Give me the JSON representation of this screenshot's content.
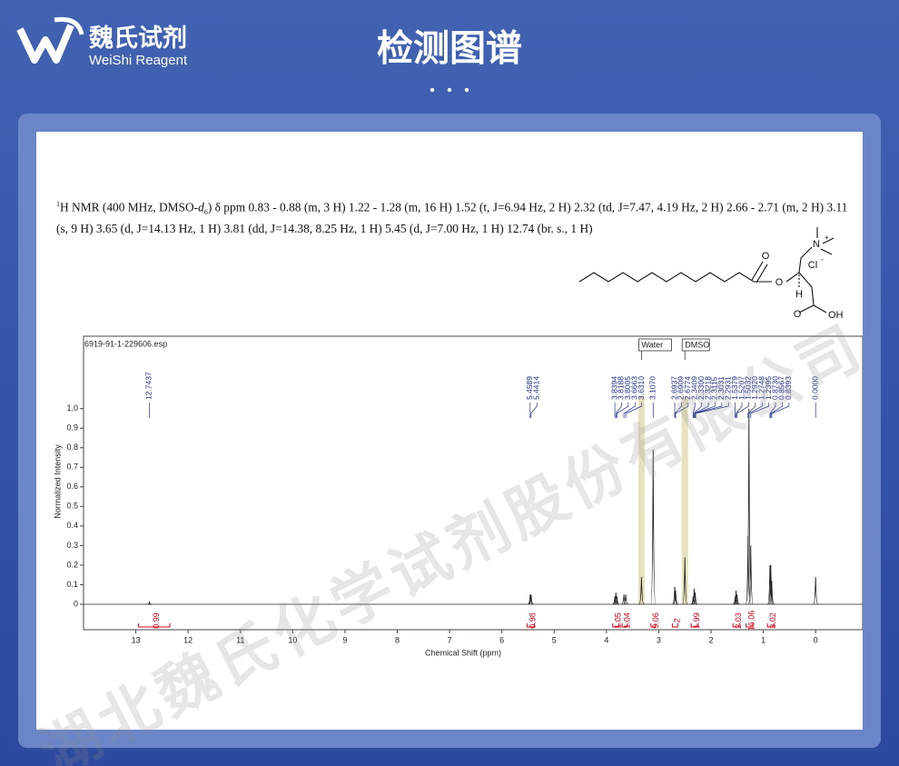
{
  "header": {
    "logo_cn": "魏氏试剂",
    "logo_en": "WeiShi Reagent",
    "title": "检测图谱"
  },
  "watermark": "湖北魏氏化学试剂股份有限公司",
  "nmr_description": {
    "nucleus_mass": "1",
    "prefix": "H NMR (400 MHz, DMSO-",
    "solvent_italic": "d",
    "solvent_sub": "6",
    "text": ") δ ppm 0.83 - 0.88 (m, 3 H) 1.22 - 1.28 (m, 16 H) 1.52 (t, J=6.94 Hz, 2 H) 2.32 (td, J=7.47, 4.19 Hz, 2 H) 2.66 - 2.71 (m, 2 H) 3.11 (s, 9 H) 3.65 (d, J=14.13 Hz, 1 H) 3.81 (dd, J=14.38, 8.25 Hz, 1 H) 5.45 (d, J=7.00 Hz, 1 H) 12.74 (br. s., 1 H)"
  },
  "structure": {
    "carbonyl_o": "O",
    "ester_o": "O",
    "nitrogen": "N",
    "nitrogen_charge": "+",
    "chloride": "Cl",
    "chloride_charge": "-",
    "stereo_h": "H",
    "acid_o": "O",
    "acid_oh": "OH"
  },
  "chart_data": {
    "type": "nmr",
    "file_label": "6919-91-1-229606.esp",
    "x_label": "Chemical Shift (ppm)",
    "y_label": "Normalized Intensity",
    "xlim": [
      14,
      -0.9
    ],
    "ylim": [
      -0.13,
      1.37
    ],
    "xticks": [
      13,
      12,
      11,
      10,
      9,
      8,
      7,
      6,
      5,
      4,
      3,
      2,
      1,
      0
    ],
    "yticks": [
      0,
      0.1,
      0.2,
      0.3,
      0.4,
      0.5,
      0.6,
      0.7,
      0.8,
      0.9,
      {
        "value": 1,
        "label": "1.0"
      }
    ],
    "peak_color": "#222222",
    "integral_color": "#d0021b",
    "label_color": "#1d2f8c",
    "peaks": {
      "x": [
        12.74,
        5.459,
        5.441,
        3.839,
        3.819,
        3.8,
        3.666,
        3.631,
        3.33,
        3.107,
        2.694,
        2.677,
        2.5,
        2.341,
        2.322,
        2.303,
        1.538,
        1.521,
        1.503,
        1.292,
        1.275,
        1.24,
        0.873,
        0.857,
        0.839,
        0
      ],
      "values": [
        0.01,
        0.05,
        0.05,
        0.04,
        0.06,
        0.04,
        0.05,
        0.05,
        0.14,
        0.79,
        0.09,
        0.07,
        0.24,
        0.04,
        0.08,
        0.06,
        0.04,
        0.07,
        0.05,
        0.35,
        1.0,
        0.3,
        0.2,
        0.2,
        0.12,
        0.14
      ]
    },
    "shift_labels": [
      "12.7437",
      "5.4589",
      "5.4414",
      "3.8394",
      "3.8188",
      "3.8005",
      "3.6663",
      "3.6310",
      "3.1070",
      "2.6937",
      "2.6909",
      "2.6774",
      "2.3409",
      "2.3300",
      "2.3218",
      "2.3115",
      "2.3031",
      "2.2931",
      "1.5379",
      "1.5207",
      "1.5032",
      "1.2920",
      "1.2748",
      "1.2395",
      "0.8730",
      "0.8567",
      "0.8393",
      "0.0000"
    ],
    "integrals": {
      "ranges": [
        [
          12.95,
          12.35
        ],
        [
          5.52,
          5.38
        ],
        [
          3.88,
          3.76
        ],
        [
          3.7,
          3.6
        ],
        [
          3.15,
          3.06
        ],
        [
          2.74,
          2.64
        ],
        [
          2.38,
          2.26
        ],
        [
          1.58,
          1.46
        ],
        [
          1.33,
          1.2
        ],
        [
          0.92,
          0.8
        ]
      ],
      "values": [
        0.99,
        0.98,
        1.05,
        1.04,
        9.06,
        2.0,
        1.99,
        2.03,
        16.06,
        3.02
      ]
    },
    "solvent_bands": [
      {
        "name": "Water",
        "ppm": 3.33
      },
      {
        "name": "DMSO",
        "ppm": 2.5
      }
    ]
  }
}
